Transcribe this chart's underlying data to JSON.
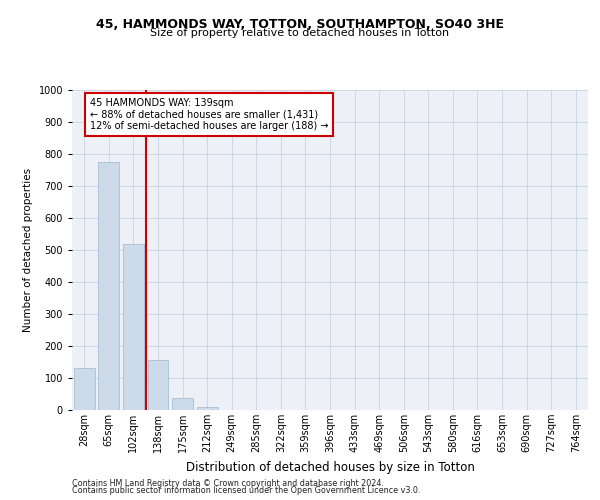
{
  "title1": "45, HAMMONDS WAY, TOTTON, SOUTHAMPTON, SO40 3HE",
  "title2": "Size of property relative to detached houses in Totton",
  "xlabel": "Distribution of detached houses by size in Totton",
  "ylabel": "Number of detached properties",
  "bar_labels": [
    "28sqm",
    "65sqm",
    "102sqm",
    "138sqm",
    "175sqm",
    "212sqm",
    "249sqm",
    "285sqm",
    "322sqm",
    "359sqm",
    "396sqm",
    "433sqm",
    "469sqm",
    "506sqm",
    "543sqm",
    "580sqm",
    "616sqm",
    "653sqm",
    "690sqm",
    "727sqm",
    "764sqm"
  ],
  "bar_values": [
    130,
    775,
    520,
    155,
    38,
    10,
    0,
    0,
    0,
    0,
    0,
    0,
    0,
    0,
    0,
    0,
    0,
    0,
    0,
    0,
    0
  ],
  "bar_color": "#ccdaea",
  "bar_edge_color": "#a8bfd4",
  "vline_color": "#cc0000",
  "ylim": [
    0,
    1000
  ],
  "yticks": [
    0,
    100,
    200,
    300,
    400,
    500,
    600,
    700,
    800,
    900,
    1000
  ],
  "grid_color": "#cdd8e5",
  "annotation_text": "45 HAMMONDS WAY: 139sqm\n← 88% of detached houses are smaller (1,431)\n12% of semi-detached houses are larger (188) →",
  "annotation_box_color": "#ffffff",
  "annotation_box_edge": "#cc0000",
  "footer1": "Contains HM Land Registry data © Crown copyright and database right 2024.",
  "footer2": "Contains public sector information licensed under the Open Government Licence v3.0.",
  "bg_color": "#ffffff",
  "axes_bg_color": "#edf1f7",
  "title1_fontsize": 9,
  "title2_fontsize": 8,
  "xlabel_fontsize": 8.5,
  "ylabel_fontsize": 7.5,
  "tick_fontsize": 7,
  "annot_fontsize": 7,
  "footer_fontsize": 5.8
}
